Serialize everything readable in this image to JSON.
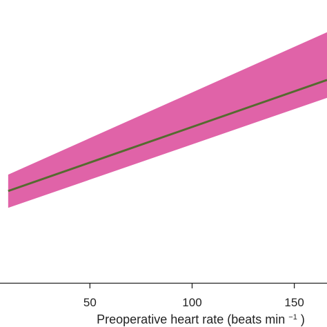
{
  "chart_data": {
    "type": "line",
    "title": "",
    "xlabel": "Preoperative heart rate (beats min",
    "xlabel_superscript": "−1",
    "xlabel_suffix": ")",
    "ylabel": "",
    "xlim": [
      6,
      166
    ],
    "ylim": [
      0,
      1
    ],
    "x_ticks": [
      50,
      100,
      150
    ],
    "x_tick_labels": [
      "50",
      "100",
      "150"
    ],
    "grid": false,
    "series": [
      {
        "line_color": "#556b2f",
        "band_color": "#e063a8",
        "x": [
          10,
          166
        ],
        "y": [
          0.3247,
          0.7173
        ],
        "lower": [
          0.2652,
          0.6541
        ],
        "upper": [
          0.3827,
          0.8861
        ]
      }
    ]
  }
}
